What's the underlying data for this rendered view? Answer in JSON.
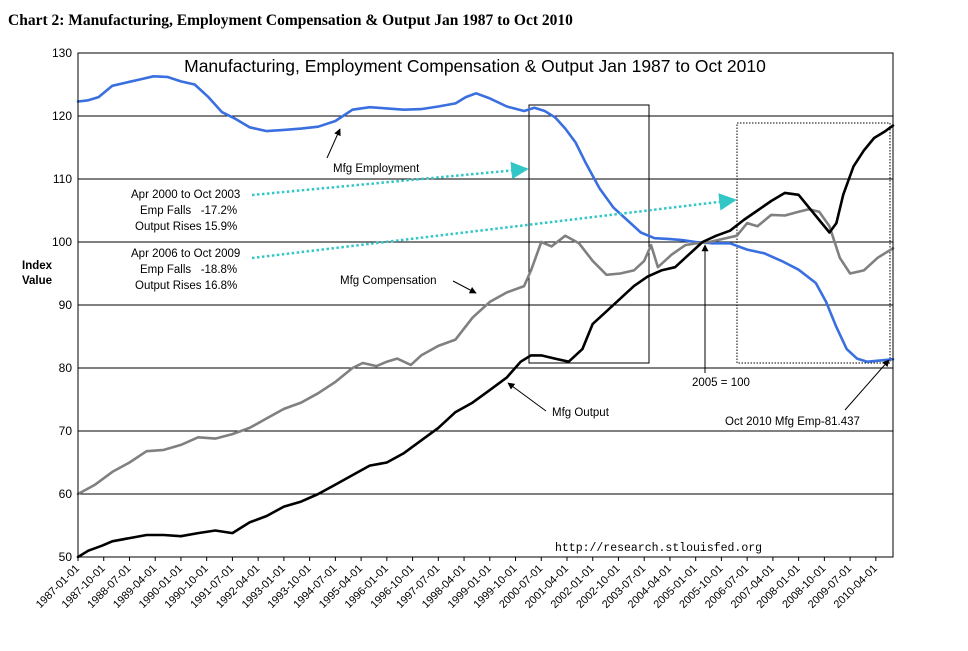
{
  "page_heading": "Chart 2: Manufacturing, Employment Compensation & Output Jan 1987 to Oct 2010",
  "colors": {
    "employment": "#3a6fe0",
    "compensation": "#808080",
    "output": "#000000",
    "arrow_dotted": "#33c6c6"
  },
  "chart_data": {
    "type": "line",
    "title": "Manufacturing, Employment Compensation & Output Jan 1987 to Oct 2010",
    "ylabel_line1": "Index",
    "ylabel_line2": "Value",
    "ylim": [
      50,
      130
    ],
    "yticks": [
      "50",
      "60",
      "70",
      "80",
      "90",
      "100",
      "110",
      "120",
      "130"
    ],
    "xlim": [
      1987.0,
      2010.75
    ],
    "x_tick_labels": [
      "1987-01-01",
      "1987-10-01",
      "1988-07-01",
      "1989-04-01",
      "1990-01-01",
      "1990-10-01",
      "1991-07-01",
      "1992-04-01",
      "1993-01-01",
      "1993-10-01",
      "1994-07-01",
      "1995-04-01",
      "1996-01-01",
      "1996-10-01",
      "1997-07-01",
      "1998-04-01",
      "1999-01-01",
      "1999-10-01",
      "2000-07-01",
      "2001-04-01",
      "2002-01-01",
      "2002-10-01",
      "2003-07-01",
      "2004-04-01",
      "2005-01-01",
      "2005-10-01",
      "2006-07-01",
      "2007-04-01",
      "2008-01-01",
      "2008-10-01",
      "2009-07-01",
      "2010-04-01"
    ],
    "grid": "horizontal",
    "series": [
      {
        "name": "Mfg Employment",
        "x": [
          1987.0,
          1987.3,
          1987.6,
          1988.0,
          1988.4,
          1988.8,
          1989.2,
          1989.6,
          1990.0,
          1990.4,
          1990.8,
          1991.2,
          1991.6,
          1992.0,
          1992.5,
          1993.0,
          1993.5,
          1994.0,
          1994.5,
          1995.0,
          1995.5,
          1996.0,
          1996.5,
          1997.0,
          1997.5,
          1998.0,
          1998.3,
          1998.6,
          1999.0,
          1999.5,
          2000.0,
          2000.3,
          2000.6,
          2000.9,
          2001.2,
          2001.5,
          2001.8,
          2002.2,
          2002.6,
          2003.0,
          2003.4,
          2003.8,
          2004.2,
          2004.6,
          2005.0,
          2005.5,
          2006.0,
          2006.5,
          2007.0,
          2007.5,
          2008.0,
          2008.5,
          2008.8,
          2009.1,
          2009.4,
          2009.7,
          2010.0,
          2010.4,
          2010.75
        ],
        "y": [
          122.3,
          122.5,
          123.0,
          124.8,
          125.3,
          125.8,
          126.3,
          126.2,
          125.5,
          125.0,
          123.0,
          120.6,
          119.5,
          118.2,
          117.6,
          117.8,
          118.0,
          118.3,
          119.2,
          121.0,
          121.4,
          121.2,
          121.0,
          121.1,
          121.5,
          122.0,
          123.0,
          123.6,
          122.8,
          121.5,
          120.8,
          121.3,
          120.8,
          119.8,
          118.0,
          115.8,
          112.5,
          108.5,
          105.5,
          103.5,
          101.5,
          100.6,
          100.5,
          100.3,
          100.0,
          99.8,
          99.8,
          98.8,
          98.2,
          97.0,
          95.6,
          93.5,
          90.5,
          86.5,
          83.0,
          81.5,
          81.0,
          81.2,
          81.4
        ]
      },
      {
        "name": "Mfg Compensation",
        "x": [
          1987.0,
          1987.5,
          1988.0,
          1988.5,
          1989.0,
          1989.5,
          1990.0,
          1990.5,
          1991.0,
          1991.5,
          1992.0,
          1992.5,
          1993.0,
          1993.5,
          1994.0,
          1994.5,
          1995.0,
          1995.3,
          1995.7,
          1996.0,
          1996.3,
          1996.7,
          1997.0,
          1997.5,
          1998.0,
          1998.5,
          1999.0,
          1999.5,
          2000.0,
          2000.2,
          2000.5,
          2000.8,
          2001.2,
          2001.6,
          2002.0,
          2002.4,
          2002.8,
          2003.2,
          2003.5,
          2003.7,
          2003.9,
          2004.3,
          2004.7,
          2005.0,
          2005.4,
          2005.8,
          2006.2,
          2006.5,
          2006.8,
          2007.2,
          2007.6,
          2008.0,
          2008.3,
          2008.6,
          2008.9,
          2009.2,
          2009.5,
          2009.9,
          2010.3,
          2010.75
        ],
        "y": [
          60.0,
          61.5,
          63.5,
          65.0,
          66.8,
          67.0,
          67.8,
          69.0,
          68.8,
          69.5,
          70.5,
          72.0,
          73.5,
          74.5,
          76.0,
          77.8,
          80.0,
          80.8,
          80.3,
          81.0,
          81.5,
          80.5,
          82.0,
          83.5,
          84.5,
          88.0,
          90.5,
          92.0,
          93.0,
          95.5,
          100.0,
          99.3,
          101.0,
          99.8,
          97.0,
          94.8,
          95.0,
          95.5,
          97.0,
          99.5,
          96.0,
          98.0,
          99.5,
          99.8,
          100.0,
          100.5,
          101.0,
          103.0,
          102.5,
          104.3,
          104.2,
          104.8,
          105.2,
          104.8,
          102.5,
          97.5,
          95.0,
          95.5,
          97.5,
          99.0
        ]
      },
      {
        "name": "Mfg Output",
        "x": [
          1987.0,
          1987.3,
          1987.7,
          1988.0,
          1988.5,
          1989.0,
          1989.5,
          1990.0,
          1990.5,
          1991.0,
          1991.5,
          1992.0,
          1992.5,
          1993.0,
          1993.5,
          1994.0,
          1994.5,
          1995.0,
          1995.5,
          1996.0,
          1996.5,
          1997.0,
          1997.5,
          1998.0,
          1998.5,
          1999.0,
          1999.5,
          1999.9,
          2000.2,
          2000.5,
          2000.9,
          2001.3,
          2001.7,
          2002.0,
          2002.4,
          2002.8,
          2003.2,
          2003.6,
          2004.0,
          2004.4,
          2004.8,
          2005.2,
          2005.6,
          2006.0,
          2006.4,
          2006.8,
          2007.2,
          2007.6,
          2008.0,
          2008.3,
          2008.6,
          2008.9,
          2009.1,
          2009.3,
          2009.6,
          2009.9,
          2010.2,
          2010.5,
          2010.75
        ],
        "y": [
          50.0,
          51.0,
          51.8,
          52.5,
          53.0,
          53.5,
          53.5,
          53.3,
          53.8,
          54.2,
          53.8,
          55.5,
          56.5,
          58.0,
          58.8,
          60.0,
          61.5,
          63.0,
          64.5,
          65.0,
          66.5,
          68.5,
          70.5,
          73.0,
          74.5,
          76.5,
          78.5,
          81.0,
          82.0,
          82.0,
          81.5,
          81.0,
          83.0,
          87.0,
          89.0,
          91.0,
          93.0,
          94.5,
          95.5,
          96.0,
          98.0,
          100.0,
          101.0,
          101.8,
          103.5,
          105.0,
          106.5,
          107.8,
          107.5,
          105.5,
          103.5,
          101.5,
          103.0,
          107.5,
          112.0,
          114.5,
          116.5,
          117.5,
          118.5
        ]
      }
    ],
    "annotations": {
      "employment_label": "Mfg Employment",
      "compensation_label": "Mfg Compensation",
      "output_label": "Mfg Output",
      "period1_line1": "Apr 2000 to Oct 2003",
      "period1_line2": "Emp Falls   -17.2%",
      "period1_line3": "Output Rises 15.9%",
      "period2_line1": "Apr 2006 to Oct 2009",
      "period2_line2": "Emp Falls   -18.8%",
      "period2_line3": "Output Rises 16.8%",
      "base_label": "2005 = 100",
      "last_value_label": "Oct 2010 Mfg Emp-81.437",
      "source": "http://research.stlouisfed.org"
    }
  }
}
